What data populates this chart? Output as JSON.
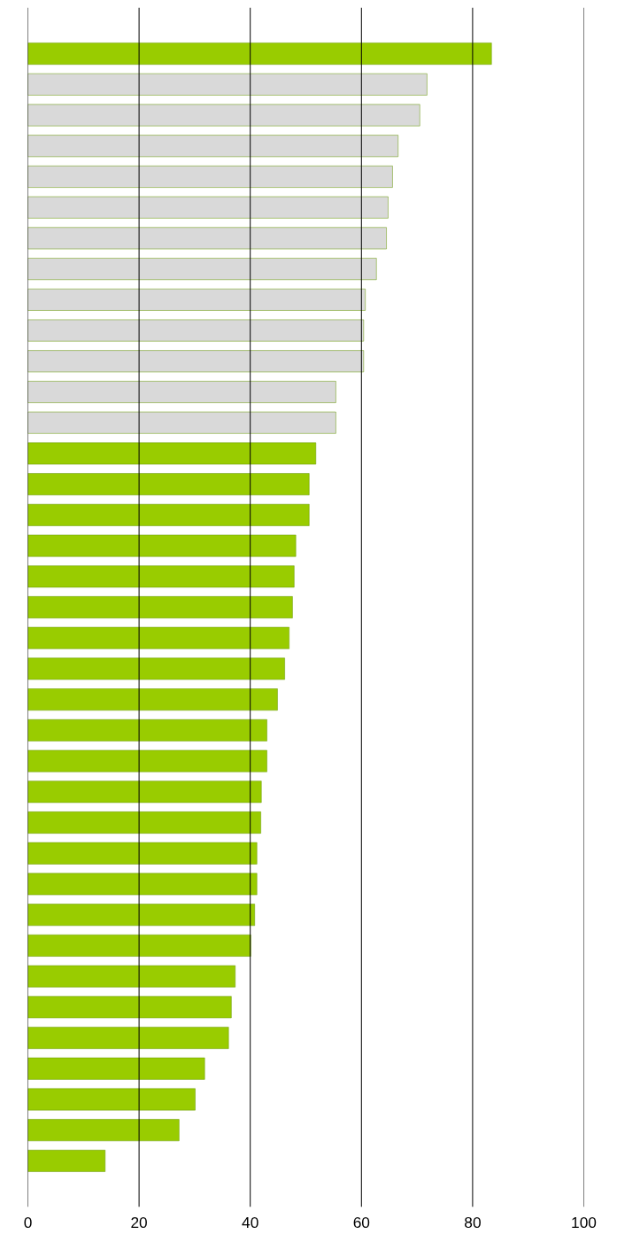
{
  "chart_data": {
    "type": "bar",
    "orientation": "horizontal",
    "categories": [
      null,
      null,
      null,
      null,
      null,
      null,
      null,
      null,
      null,
      null,
      null,
      null,
      null,
      null,
      null,
      null,
      null,
      null,
      null,
      null,
      null,
      null,
      null,
      null,
      null,
      null,
      null,
      null,
      null,
      null,
      null,
      null,
      null,
      null,
      null,
      null,
      null
    ],
    "values": [
      83.4,
      71.8,
      70.5,
      66.6,
      65.6,
      64.8,
      64.5,
      62.7,
      60.7,
      60.4,
      60.4,
      55.4,
      55.4,
      51.8,
      50.6,
      50.6,
      48.2,
      47.9,
      47.6,
      47.0,
      46.2,
      44.9,
      43.0,
      43.0,
      42.0,
      41.9,
      41.2,
      41.2,
      40.8,
      40.1,
      37.3,
      36.6,
      36.1,
      31.8,
      30.1,
      27.2,
      13.9
    ],
    "colors": [
      "#99cc00",
      "#d9d9d9",
      "#d9d9d9",
      "#d9d9d9",
      "#d9d9d9",
      "#d9d9d9",
      "#d9d9d9",
      "#d9d9d9",
      "#d9d9d9",
      "#d9d9d9",
      "#d9d9d9",
      "#d9d9d9",
      "#d9d9d9",
      "#99cc00",
      "#99cc00",
      "#99cc00",
      "#99cc00",
      "#99cc00",
      "#99cc00",
      "#99cc00",
      "#99cc00",
      "#99cc00",
      "#99cc00",
      "#99cc00",
      "#99cc00",
      "#99cc00",
      "#99cc00",
      "#99cc00",
      "#99cc00",
      "#99cc00",
      "#99cc00",
      "#99cc00",
      "#99cc00",
      "#99cc00",
      "#99cc00",
      "#99cc00",
      "#99cc00"
    ],
    "xlim": [
      0,
      100
    ],
    "xticks": [
      0,
      20,
      40,
      60,
      80,
      100
    ],
    "grid": "x"
  }
}
